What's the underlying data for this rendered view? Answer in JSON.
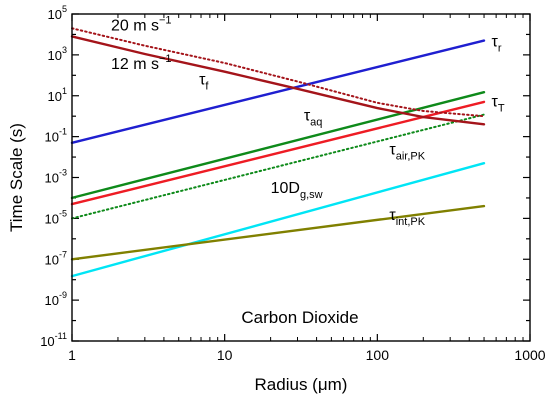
{
  "chart_data": {
    "type": "line",
    "title": "",
    "xlabel": "Radius (μm)",
    "ylabel": "Time Scale (s)",
    "x_scale": "log",
    "y_scale": "log",
    "xlim": [
      1,
      1000
    ],
    "ylim": [
      1e-11,
      100000
    ],
    "grid": false,
    "x_ticks": [
      {
        "value": 1,
        "label": "1"
      },
      {
        "value": 10,
        "label": "10"
      },
      {
        "value": 100,
        "label": "100"
      },
      {
        "value": 1000,
        "label": "1000"
      }
    ],
    "y_ticks": [
      {
        "value": 100000,
        "base": "10",
        "exp": "5"
      },
      {
        "value": 1000,
        "base": "10",
        "exp": "3"
      },
      {
        "value": 10,
        "base": "10",
        "exp": "1"
      },
      {
        "value": 0.1,
        "base": "10",
        "exp": "-1"
      },
      {
        "value": 0.001,
        "base": "10",
        "exp": "-3"
      },
      {
        "value": 1e-05,
        "base": "10",
        "exp": "-5"
      },
      {
        "value": 1e-07,
        "base": "10",
        "exp": "-7"
      },
      {
        "value": 1e-09,
        "base": "10",
        "exp": "-9"
      },
      {
        "value": 1e-11,
        "base": "10",
        "exp": "-11"
      }
    ],
    "series": [
      {
        "name": "τr",
        "color": "#1f1fd0",
        "dash": "solid",
        "x": [
          1,
          500
        ],
        "y": [
          0.05,
          5000
        ]
      },
      {
        "name": "τT",
        "color": "#ee1c24",
        "dash": "solid",
        "x": [
          1,
          500
        ],
        "y": [
          5e-05,
          5
        ]
      },
      {
        "name": "τaq",
        "color": "#0e8a1a",
        "dash": "solid",
        "x": [
          1,
          500
        ],
        "y": [
          0.0001,
          15
        ]
      },
      {
        "name": "10Dg,sw",
        "color": "#0e8a1a",
        "dash": "dotted",
        "x": [
          1,
          500
        ],
        "y": [
          1e-05,
          1.2
        ]
      },
      {
        "name": "τair,PK",
        "color": "#00e5f5",
        "dash": "solid",
        "x": [
          1,
          500
        ],
        "y": [
          1.5e-08,
          0.005
        ]
      },
      {
        "name": "τint,PK",
        "color": "#808000",
        "dash": "solid",
        "x": [
          1,
          500
        ],
        "y": [
          1e-07,
          4e-05
        ]
      },
      {
        "name": "12 m s−1",
        "color": "#a4141a",
        "dash": "solid",
        "x": [
          1,
          3,
          10,
          30,
          100,
          200,
          500
        ],
        "y": [
          8000,
          1100,
          150,
          22,
          2.5,
          0.9,
          0.4
        ]
      },
      {
        "name": "20 m s−1",
        "color": "#a4141a",
        "dash": "dotted",
        "x": [
          1,
          3,
          10,
          30,
          100,
          200,
          500
        ],
        "y": [
          20000,
          2800,
          400,
          50,
          4.5,
          1.8,
          1.0
        ]
      }
    ],
    "annotations": [
      {
        "text": "20 m s",
        "sup": "−1",
        "x": 1.8,
        "y": 16000
      },
      {
        "text": "12 m s",
        "sup": "−1",
        "x": 1.8,
        "y": 200
      },
      {
        "text": "τ",
        "sub": "f",
        "x": 6.8,
        "y": 35
      },
      {
        "text": "τ",
        "sub": "r",
        "x": 560,
        "y": 2500
      },
      {
        "text": "τ",
        "sub": "T",
        "x": 560,
        "y": 3
      },
      {
        "text": "τ",
        "sub": "aq",
        "x": 33,
        "y": 0.6
      },
      {
        "text": "10D",
        "sub": "g,sw",
        "x": 20,
        "y": 0.00017
      },
      {
        "text": "τ",
        "sub": "air,PK",
        "x": 120,
        "y": 0.013
      },
      {
        "text": "τ",
        "sub": "int,PK",
        "x": 120,
        "y": 8.5e-06
      }
    ],
    "inner_label": "Carbon Dioxide"
  }
}
